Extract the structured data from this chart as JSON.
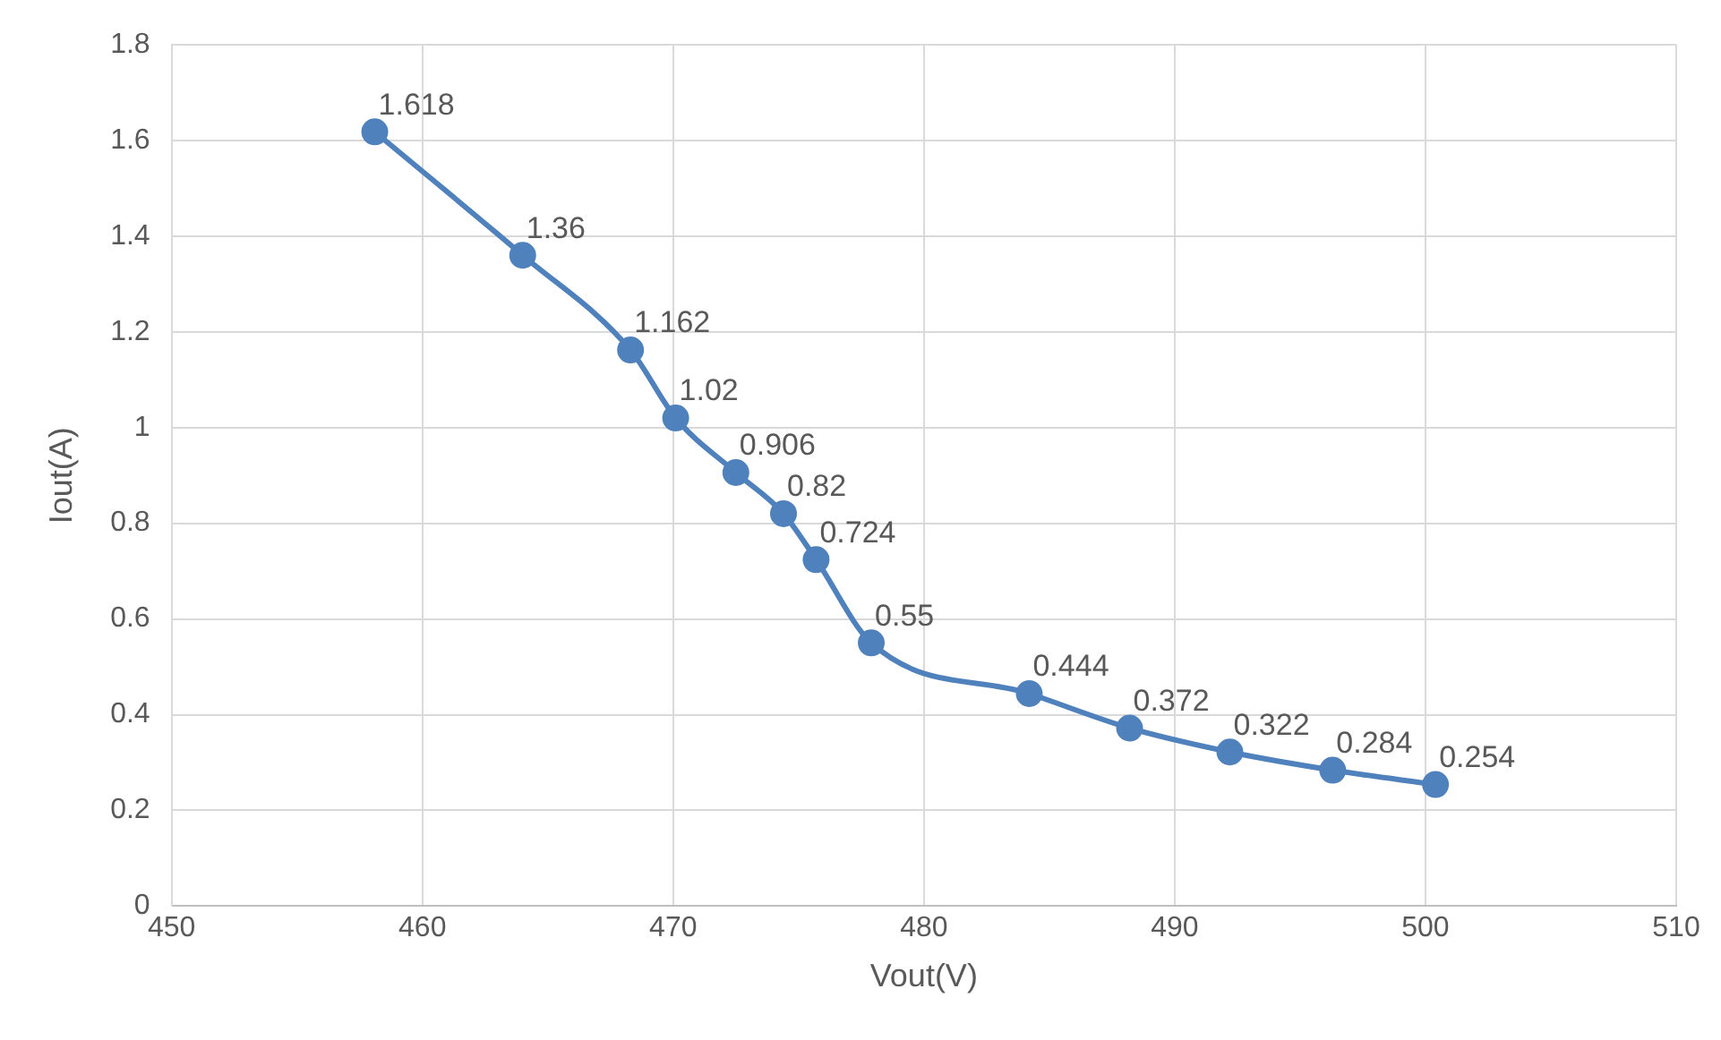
{
  "chart_data": {
    "type": "line",
    "xlabel": "Vout(V)",
    "ylabel": "Iout(A)",
    "x": [
      458.1,
      464.0,
      468.3,
      470.1,
      472.5,
      474.4,
      475.7,
      477.9,
      484.2,
      488.2,
      492.2,
      496.3,
      500.4
    ],
    "series": [
      {
        "color": "#4f81bd",
        "values": [
          1.618,
          1.36,
          1.162,
          1.02,
          0.906,
          0.82,
          0.724,
          0.55,
          0.444,
          0.372,
          0.322,
          0.284,
          0.254
        ]
      }
    ],
    "xlim": [
      450,
      510
    ],
    "xticks": [
      450,
      460,
      470,
      480,
      490,
      500,
      510
    ],
    "ylim": [
      0,
      1.8
    ],
    "yticks": [
      0,
      0.2,
      0.4,
      0.6,
      0.8,
      1,
      1.2,
      1.4,
      1.6,
      1.8
    ],
    "grid": true,
    "marker": "circle",
    "line_style": "solid",
    "data_labels": true,
    "legend": false
  }
}
